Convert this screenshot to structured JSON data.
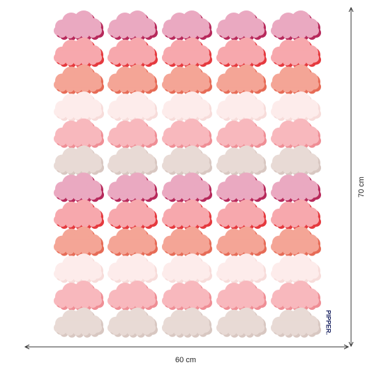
{
  "dimensions": {
    "width": "60 cm",
    "height": "70 cm"
  },
  "brand": "PIPPER."
}
